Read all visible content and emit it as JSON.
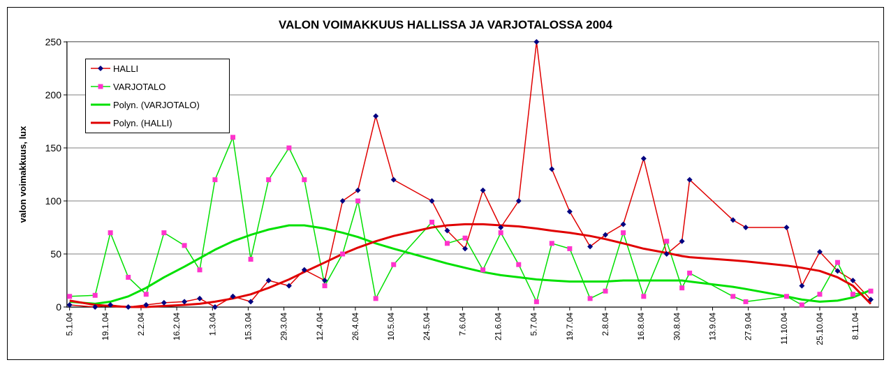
{
  "chart_data": {
    "type": "line",
    "title": "VALON VOIMAKKUUS HALLISSA JA VARJOTALOSSA 2004",
    "y_label": "valon voimakkuus, lux",
    "x": [
      "2004-01-05",
      "2004-01-15",
      "2004-01-21",
      "2004-01-28",
      "2004-02-04",
      "2004-02-11",
      "2004-02-19",
      "2004-02-25",
      "2004-03-02",
      "2004-03-09",
      "2004-03-16",
      "2004-03-23",
      "2004-03-31",
      "2004-04-06",
      "2004-04-14",
      "2004-04-21",
      "2004-04-27",
      "2004-05-04",
      "2004-05-11",
      "2004-05-26",
      "2004-06-01",
      "2004-06-08",
      "2004-06-15",
      "2004-06-22",
      "2004-06-29",
      "2004-07-06",
      "2004-07-12",
      "2004-07-19",
      "2004-07-27",
      "2004-08-02",
      "2004-08-09",
      "2004-08-17",
      "2004-08-26",
      "2004-09-01",
      "2004-09-04",
      "2004-09-21",
      "2004-09-26",
      "2004-10-12",
      "2004-10-18",
      "2004-10-25",
      "2004-11-01",
      "2004-11-07",
      "2004-11-14"
    ],
    "series": [
      {
        "name": "HALLI",
        "color": "#e00000",
        "marker": "diamond",
        "marker_color": "#000080",
        "width": 1.5,
        "values": [
          2,
          0,
          2,
          0,
          2,
          4,
          5,
          8,
          0,
          10,
          5,
          25,
          20,
          35,
          25,
          100,
          110,
          180,
          120,
          100,
          72,
          55,
          110,
          75,
          100,
          250,
          130,
          90,
          57,
          68,
          78,
          140,
          50,
          62,
          120,
          82,
          75,
          75,
          20,
          52,
          34,
          25,
          7
        ]
      },
      {
        "name": "VARJOTALO",
        "color": "#00e000",
        "marker": "square",
        "marker_color": "#ff33cc",
        "width": 1.5,
        "values": [
          10,
          11,
          70,
          28,
          12,
          70,
          58,
          35,
          120,
          160,
          45,
          120,
          150,
          120,
          20,
          50,
          100,
          8,
          40,
          80,
          60,
          65,
          35,
          70,
          40,
          5,
          60,
          55,
          8,
          15,
          70,
          10,
          62,
          18,
          32,
          10,
          5,
          10,
          2,
          12,
          42,
          12,
          15
        ]
      },
      {
        "name": "Polyn. (VARJOTALO)",
        "color": "#00e000",
        "marker": null,
        "width": 3,
        "values": [
          5,
          3,
          5,
          10,
          18,
          28,
          38,
          46,
          54,
          62,
          68,
          73,
          77,
          77,
          74,
          70,
          66,
          60,
          55,
          45,
          41,
          37,
          33,
          30,
          28,
          26,
          25,
          24,
          24,
          24,
          25,
          25,
          25,
          25,
          24,
          19,
          17,
          10,
          7,
          5,
          6,
          9,
          16
        ]
      },
      {
        "name": "Polyn. (HALLI)",
        "color": "#e00000",
        "marker": null,
        "width": 3,
        "values": [
          6,
          2,
          1,
          0,
          0,
          1,
          2,
          3,
          5,
          8,
          12,
          18,
          26,
          33,
          42,
          50,
          56,
          62,
          67,
          75,
          77,
          78,
          78,
          77,
          76,
          74,
          72,
          70,
          67,
          64,
          60,
          55,
          51,
          48,
          47,
          44,
          43,
          39,
          37,
          34,
          28,
          20,
          3
        ]
      }
    ],
    "xlim": [
      "2004-01-04",
      "2004-11-17"
    ],
    "xticks": [
      {
        "value": "2004-01-05",
        "label": "5.1.04"
      },
      {
        "value": "2004-01-19",
        "label": "19.1.04"
      },
      {
        "value": "2004-02-02",
        "label": "2.2.04"
      },
      {
        "value": "2004-02-16",
        "label": "16.2.04"
      },
      {
        "value": "2004-03-01",
        "label": "1.3.04"
      },
      {
        "value": "2004-03-15",
        "label": "15.3.04"
      },
      {
        "value": "2004-03-29",
        "label": "29.3.04"
      },
      {
        "value": "2004-04-12",
        "label": "12.4.04"
      },
      {
        "value": "2004-04-26",
        "label": "26.4.04"
      },
      {
        "value": "2004-05-10",
        "label": "10.5.04"
      },
      {
        "value": "2004-05-24",
        "label": "24.5.04"
      },
      {
        "value": "2004-06-07",
        "label": "7.6.04"
      },
      {
        "value": "2004-06-21",
        "label": "21.6.04"
      },
      {
        "value": "2004-07-05",
        "label": "5.7.04"
      },
      {
        "value": "2004-07-19",
        "label": "19.7.04"
      },
      {
        "value": "2004-08-02",
        "label": "2.8.04"
      },
      {
        "value": "2004-08-16",
        "label": "16.8.04"
      },
      {
        "value": "2004-08-30",
        "label": "30.8.04"
      },
      {
        "value": "2004-09-13",
        "label": "13.9.04"
      },
      {
        "value": "2004-09-27",
        "label": "27.9.04"
      },
      {
        "value": "2004-10-11",
        "label": "11.10.04"
      },
      {
        "value": "2004-10-25",
        "label": "25.10.04"
      },
      {
        "value": "2004-11-08",
        "label": "8.11.04"
      }
    ],
    "ylim": [
      0,
      250
    ],
    "yticks": [
      0,
      50,
      100,
      150,
      200,
      250
    ],
    "grid": true,
    "legend": "top-left"
  }
}
